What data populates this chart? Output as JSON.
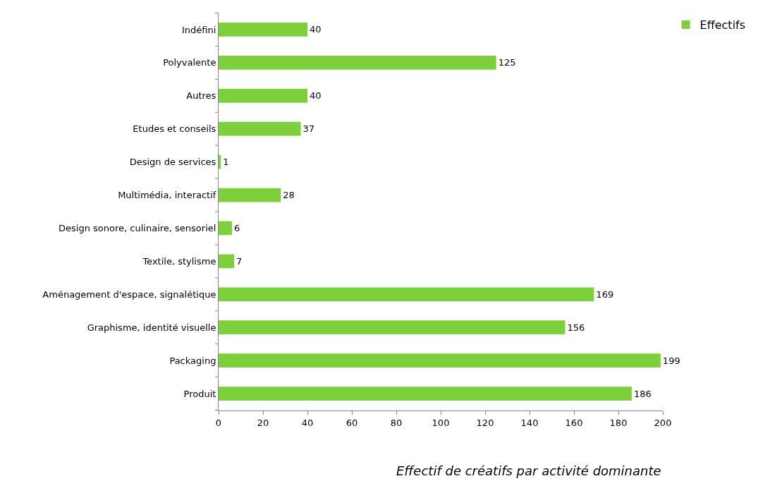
{
  "chart_data": {
    "type": "bar",
    "orientation": "horizontal",
    "categories": [
      "Indéfini",
      "Polyvalente",
      "Autres",
      "Etudes et conseils",
      "Design de services",
      "Multimédia, interactif",
      "Design sonore, culinaire, sensoriel",
      "Textile, stylisme",
      "Aménagement d'espace, signalétique",
      "Graphisme, identité visuelle",
      "Packaging",
      "Produit"
    ],
    "series": [
      {
        "name": "Effectifs",
        "color": "#7dcf3b",
        "values": [
          40,
          125,
          40,
          37,
          1,
          28,
          6,
          7,
          169,
          156,
          199,
          186
        ]
      }
    ],
    "xlim": [
      0,
      200
    ],
    "xticks": [
      0,
      20,
      40,
      60,
      80,
      100,
      120,
      140,
      160,
      180,
      200
    ],
    "grid": false,
    "legend": "top right",
    "data_labels": true,
    "annotations": [
      "Effectif de créatifs par activité dominante"
    ]
  }
}
